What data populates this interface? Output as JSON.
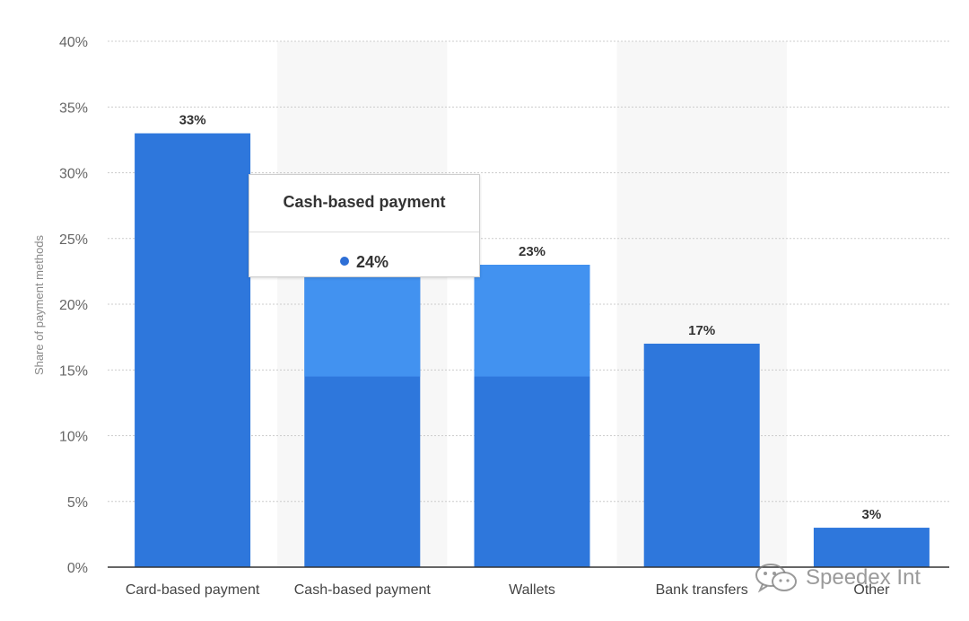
{
  "chart_data": {
    "type": "bar",
    "categories": [
      "Card-based payment",
      "Cash-based payment",
      "Wallets",
      "Bank transfers",
      "Other"
    ],
    "values": [
      33,
      24,
      23,
      17,
      3
    ],
    "data_labels": [
      "33%",
      "",
      "23%",
      "17%",
      "3%"
    ],
    "ylabel": "Share of payment methods",
    "ylim": [
      0,
      40
    ],
    "yticks": [
      0,
      5,
      10,
      15,
      20,
      25,
      30,
      35,
      40
    ],
    "ytick_labels": [
      "0%",
      "5%",
      "10%",
      "15%",
      "20%",
      "25%",
      "30%",
      "35%",
      "40%"
    ],
    "grid": true,
    "hovered_index": 1,
    "colors": {
      "bar": "#2e77dc",
      "bar_highlight": "#4292f0",
      "hover_band": "#f7f7f7",
      "grid": "#cccccc",
      "axis": "#333333"
    }
  },
  "tooltip": {
    "title": "Cash-based payment",
    "value": "24%"
  },
  "watermark": {
    "text": "Speedex Int",
    "icon": "wechat-icon"
  }
}
